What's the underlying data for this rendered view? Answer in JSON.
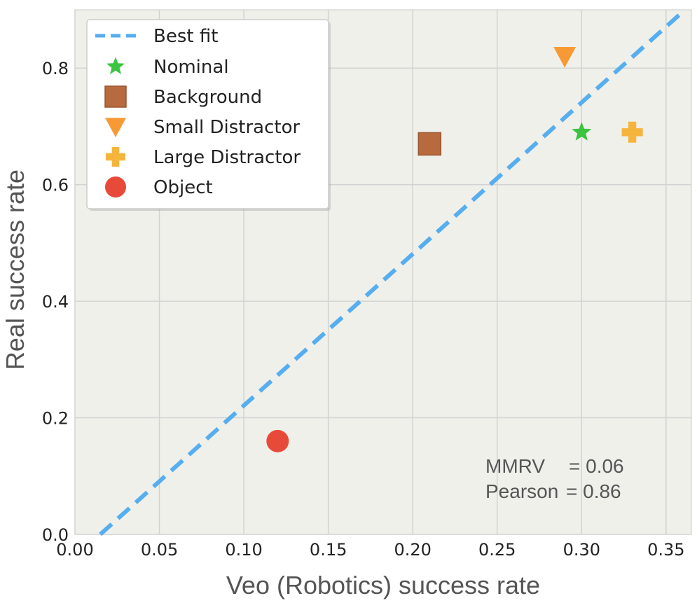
{
  "chart_data": {
    "type": "scatter",
    "xlabel": "Veo (Robotics) success rate",
    "ylabel": "Real success rate",
    "xlim": [
      0.0,
      0.365
    ],
    "ylim": [
      0.0,
      0.9
    ],
    "xticks": [
      0.0,
      0.05,
      0.1,
      0.15,
      0.2,
      0.25,
      0.3,
      0.35
    ],
    "yticks": [
      0.0,
      0.2,
      0.4,
      0.6,
      0.8
    ],
    "xtick_labels": [
      "0.00",
      "0.05",
      "0.10",
      "0.15",
      "0.20",
      "0.25",
      "0.30",
      "0.35"
    ],
    "ytick_labels": [
      "0.0",
      "0.2",
      "0.4",
      "0.6",
      "0.8"
    ],
    "grid": true,
    "legend_position": "top-left",
    "best_fit": {
      "label": "Best fit",
      "slope": 2.6,
      "intercept": -0.039,
      "color": "#56aef0"
    },
    "points": [
      {
        "label": "Nominal",
        "x": 0.3,
        "y": 0.69,
        "marker": "star",
        "color": "#3ac43f"
      },
      {
        "label": "Background",
        "x": 0.21,
        "y": 0.67,
        "marker": "square",
        "color": "#b86a3f"
      },
      {
        "label": "Small Distractor",
        "x": 0.29,
        "y": 0.82,
        "marker": "triangle-down",
        "color": "#f79a36"
      },
      {
        "label": "Large Distractor",
        "x": 0.33,
        "y": 0.69,
        "marker": "plus",
        "color": "#f5b53d"
      },
      {
        "label": "Object",
        "x": 0.12,
        "y": 0.16,
        "marker": "circle",
        "color": "#e84a3a"
      }
    ],
    "annotations": {
      "mmrv_label": "MMRV",
      "mmrv_value": "= 0.06",
      "pearson_label": "Pearson",
      "pearson_value": "= 0.86"
    }
  }
}
